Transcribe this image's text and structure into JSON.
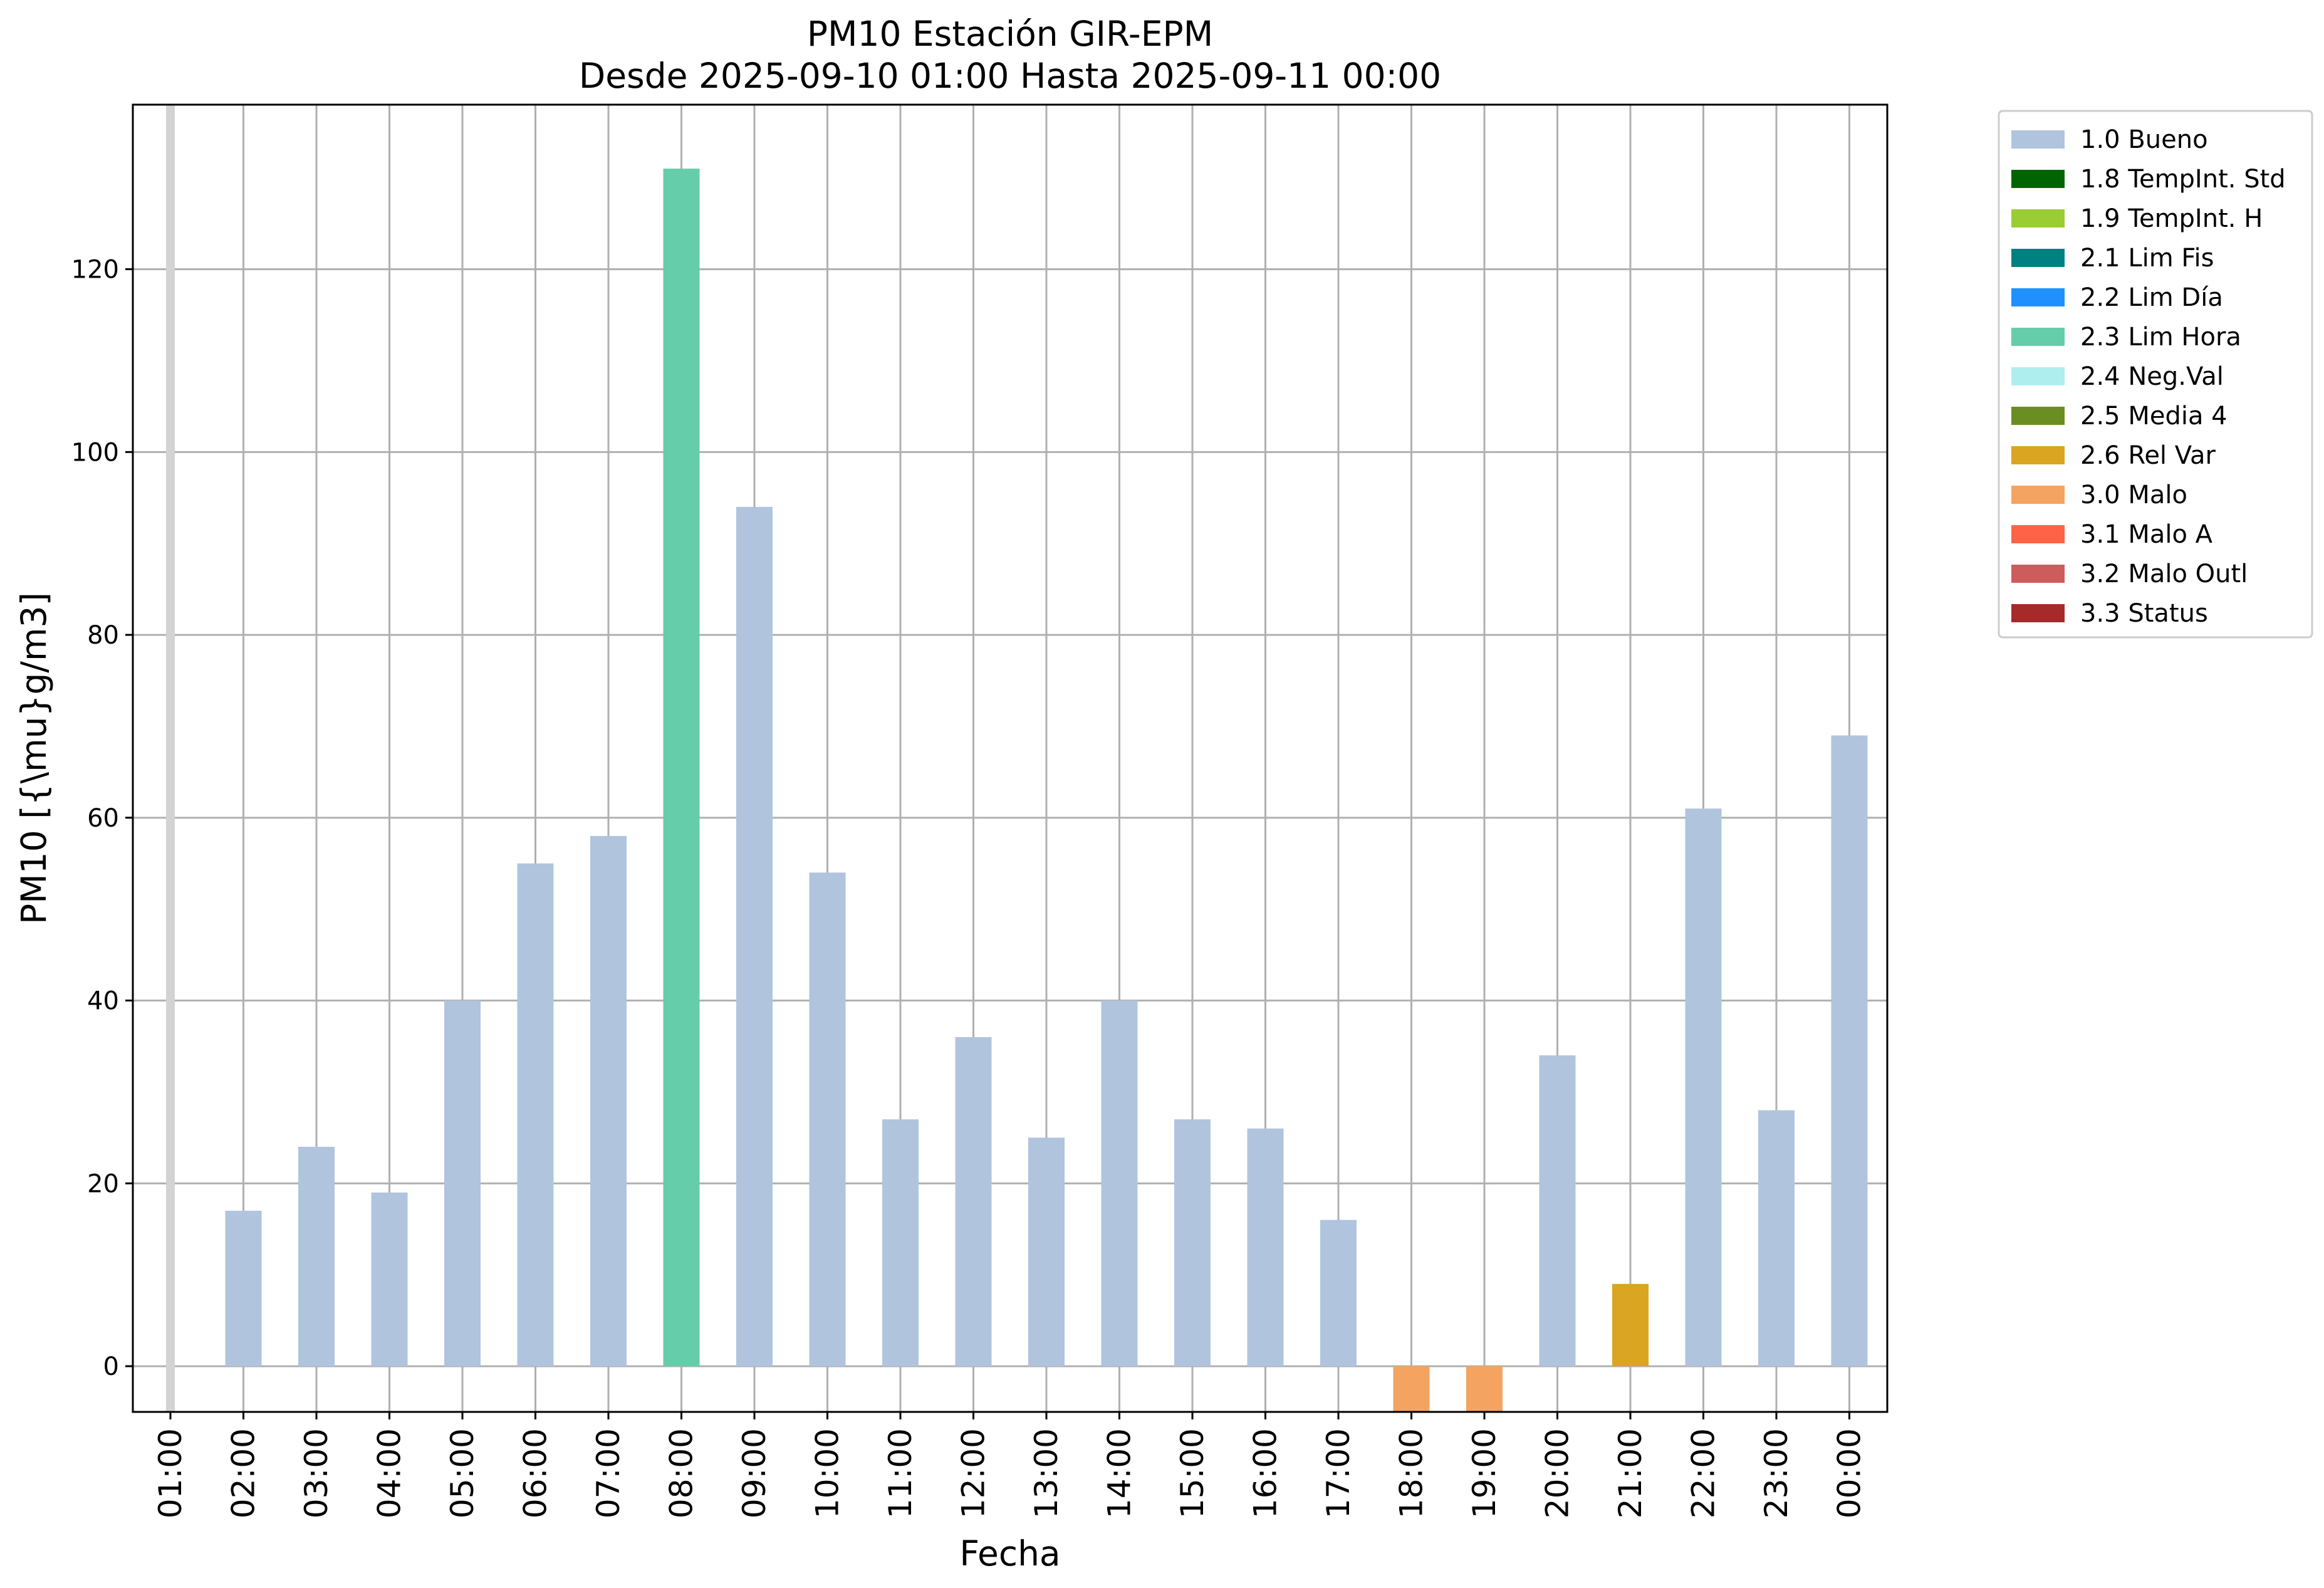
{
  "chart_data": {
    "type": "bar",
    "title": "PM10 Estación GIR-EPM",
    "subtitle": "Desde 2025-09-10 01:00 Hasta 2025-09-11 00:00",
    "xlabel": "Fecha",
    "ylabel": "PM10 [{\\mu}g/m3]",
    "ylim": [
      -5,
      138
    ],
    "yticks": [
      0,
      20,
      40,
      60,
      80,
      100,
      120
    ],
    "grid": true,
    "legend_position": "outside-top-right",
    "categories": [
      "01:00",
      "02:00",
      "03:00",
      "04:00",
      "05:00",
      "06:00",
      "07:00",
      "08:00",
      "09:00",
      "10:00",
      "11:00",
      "12:00",
      "13:00",
      "14:00",
      "15:00",
      "16:00",
      "17:00",
      "18:00",
      "19:00",
      "20:00",
      "21:00",
      "22:00",
      "23:00",
      "00:00"
    ],
    "values": [
      null,
      17,
      24,
      19,
      40,
      55,
      58,
      131,
      94,
      54,
      27,
      36,
      25,
      40,
      27,
      26,
      16,
      -5,
      -5,
      34,
      9,
      61,
      28,
      69
    ],
    "flags": [
      "1.0 Bueno",
      "1.0 Bueno",
      "1.0 Bueno",
      "1.0 Bueno",
      "1.0 Bueno",
      "1.0 Bueno",
      "1.0 Bueno",
      "2.3 Lim Hora",
      "1.0 Bueno",
      "1.0 Bueno",
      "1.0 Bueno",
      "1.0 Bueno",
      "1.0 Bueno",
      "1.0 Bueno",
      "1.0 Bueno",
      "1.0 Bueno",
      "1.0 Bueno",
      "3.0 Malo",
      "3.0 Malo",
      "1.0 Bueno",
      "2.6 Rel Var",
      "1.0 Bueno",
      "1.0 Bueno",
      "1.0 Bueno"
    ],
    "missing_marker_color": "#d3d3d3",
    "legend": [
      {
        "label": "1.0 Bueno",
        "color": "#b0c4de"
      },
      {
        "label": "1.8 TempInt. Std",
        "color": "#006400"
      },
      {
        "label": "1.9 TempInt. H",
        "color": "#9acd32"
      },
      {
        "label": "2.1 Lim Fis",
        "color": "#008080"
      },
      {
        "label": "2.2 Lim Día",
        "color": "#1e90ff"
      },
      {
        "label": "2.3 Lim Hora",
        "color": "#66cdaa"
      },
      {
        "label": "2.4 Neg.Val",
        "color": "#afeeee"
      },
      {
        "label": "2.5 Media 4",
        "color": "#6b8e23"
      },
      {
        "label": "2.6 Rel Var",
        "color": "#daa520"
      },
      {
        "label": "3.0 Malo",
        "color": "#f4a460"
      },
      {
        "label": "3.1 Malo A",
        "color": "#ff6347"
      },
      {
        "label": "3.2 Malo Outl",
        "color": "#cd5c5c"
      },
      {
        "label": "3.3 Status",
        "color": "#a52a2a"
      }
    ]
  }
}
